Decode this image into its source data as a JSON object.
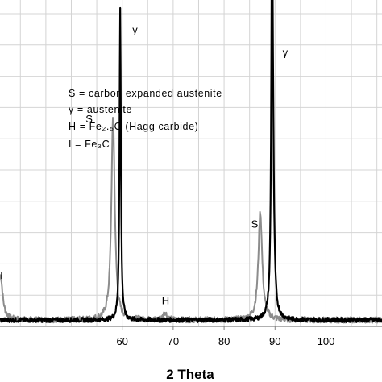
{
  "chart_data": {
    "type": "line",
    "xlabel": "2 Theta",
    "ylabel": "",
    "xlim": [
      36,
      111
    ],
    "ylim": [
      0,
      100
    ],
    "grid": true,
    "xticks": [
      60,
      70,
      80,
      90,
      100
    ],
    "legend_lines": [
      "S = carbon expanded austenite",
      "γ = austenite",
      "H = Fe₂.₅C (Hagg carbide)",
      "I = Fe₃C"
    ],
    "annotations": [
      {
        "text": "γ",
        "x": 62.5,
        "y": 92
      },
      {
        "text": "S",
        "x": 53.5,
        "y": 64
      },
      {
        "text": "γ",
        "x": 92,
        "y": 85
      },
      {
        "text": "S",
        "x": 86,
        "y": 31
      },
      {
        "text": "H",
        "x": 68.5,
        "y": 7
      },
      {
        "text": "I",
        "x": 36.3,
        "y": 15
      }
    ],
    "series": [
      {
        "color": "#8c8c8c",
        "baseline": 2,
        "noise": 0.9,
        "peaks": [
          {
            "x": 36.1,
            "h": 14,
            "w": 0.5
          },
          {
            "x": 58.2,
            "h": 64,
            "w": 0.4
          },
          {
            "x": 68.4,
            "h": 2.5,
            "w": 0.4
          },
          {
            "x": 87.1,
            "h": 34,
            "w": 0.45
          }
        ]
      },
      {
        "color": "#000000",
        "baseline": 2,
        "noise": 0.7,
        "peaks": [
          {
            "x": 59.6,
            "h": 98,
            "w": 0.16
          },
          {
            "x": 89.4,
            "h": 92,
            "w": 0.16
          },
          {
            "x": 89.55,
            "h": 50,
            "w": 0.28
          }
        ]
      }
    ]
  }
}
